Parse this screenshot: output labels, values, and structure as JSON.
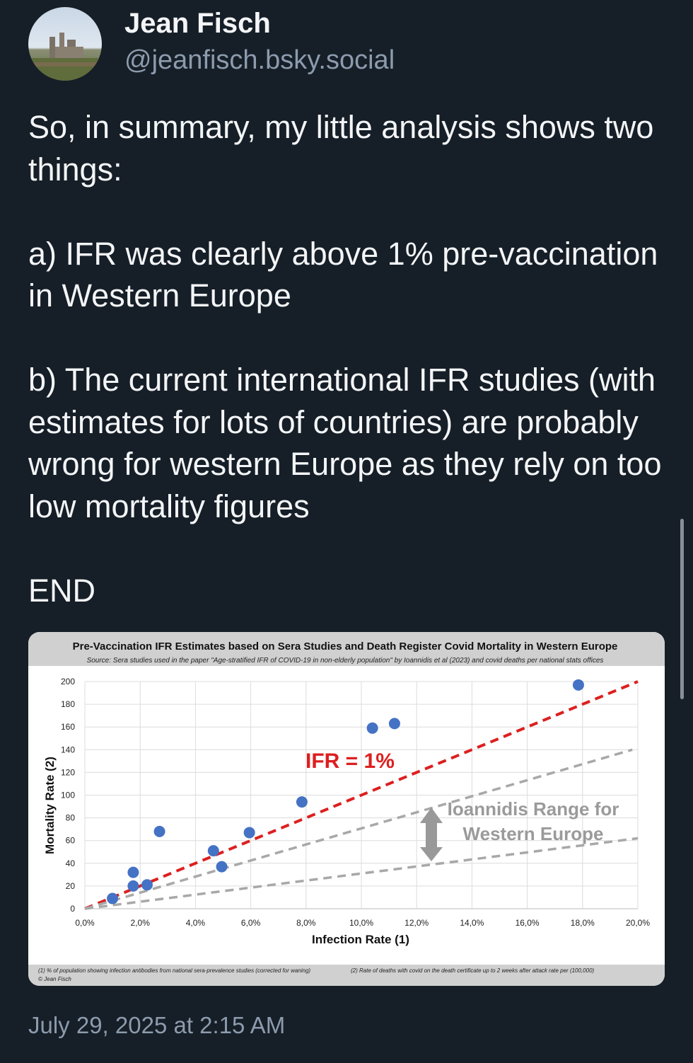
{
  "post": {
    "author_name": "Jean Fisch",
    "author_handle": "@jeanfisch.bsky.social",
    "text": "So, in summary, my little analysis shows two things:\n\na) IFR was clearly above 1% pre-vaccination in Western Europe\n\nb) The current international IFR studies (with estimates for lots of countries) are probably wrong for western Europe as they rely on too low mortality figures\n\nEND",
    "timestamp": "July 29, 2025 at 2:15 AM"
  },
  "chart_data": {
    "type": "scatter",
    "title": "Pre-Vaccination IFR Estimates based on Sera Studies and Death Register Covid Mortality in Western Europe",
    "subtitle": "Source: Sera studies used in the paper \"Age-stratified IFR of COVID-19 in non-elderly population\" by Ioannidis et al (2023) and covid deaths per national stats offices",
    "xlabel": "Infection Rate (1)",
    "ylabel": "Mortality Rate (2)",
    "xlim": [
      0,
      20
    ],
    "ylim": [
      0,
      200
    ],
    "x_ticks": [
      "0,0%",
      "2,0%",
      "4,0%",
      "6,0%",
      "8,0%",
      "10,0%",
      "12,0%",
      "14,0%",
      "16,0%",
      "18,0%",
      "20,0%"
    ],
    "y_ticks": [
      "0",
      "20",
      "40",
      "60",
      "80",
      "100",
      "120",
      "140",
      "160",
      "180",
      "200"
    ],
    "points": [
      {
        "x": 1.0,
        "y": 9
      },
      {
        "x": 1.75,
        "y": 32
      },
      {
        "x": 1.75,
        "y": 20
      },
      {
        "x": 2.25,
        "y": 21
      },
      {
        "x": 2.7,
        "y": 68
      },
      {
        "x": 4.65,
        "y": 51
      },
      {
        "x": 4.95,
        "y": 37
      },
      {
        "x": 5.95,
        "y": 67
      },
      {
        "x": 7.85,
        "y": 94
      },
      {
        "x": 10.4,
        "y": 159
      },
      {
        "x": 11.2,
        "y": 163
      },
      {
        "x": 17.85,
        "y": 197
      }
    ],
    "lines": [
      {
        "x": [
          0,
          20
        ],
        "y": [
          0,
          200
        ],
        "color": "#dd1f1f"
      },
      {
        "x": [
          0,
          19.8
        ],
        "y": [
          0,
          140
        ],
        "color": "#a8a8a8"
      },
      {
        "x": [
          0,
          20
        ],
        "y": [
          0,
          62
        ],
        "color": "#a8a8a8"
      }
    ],
    "annotations": {
      "ifr_label": "IFR = 1%",
      "range_label_line1": "Ioannidis Range for",
      "range_label_line2": "Western Europe"
    },
    "footnote_1": "(1) % of population showing infection antibodies from national sera-prevalence studies (corrected for waning)",
    "footnote_2": "(2) Rate of deaths with covid on the death certificate up to 2 weeks after attack rate per (100,000)",
    "footnote_copyright": "© Jean Fisch",
    "grid": true,
    "point_color": "#4472c4"
  }
}
